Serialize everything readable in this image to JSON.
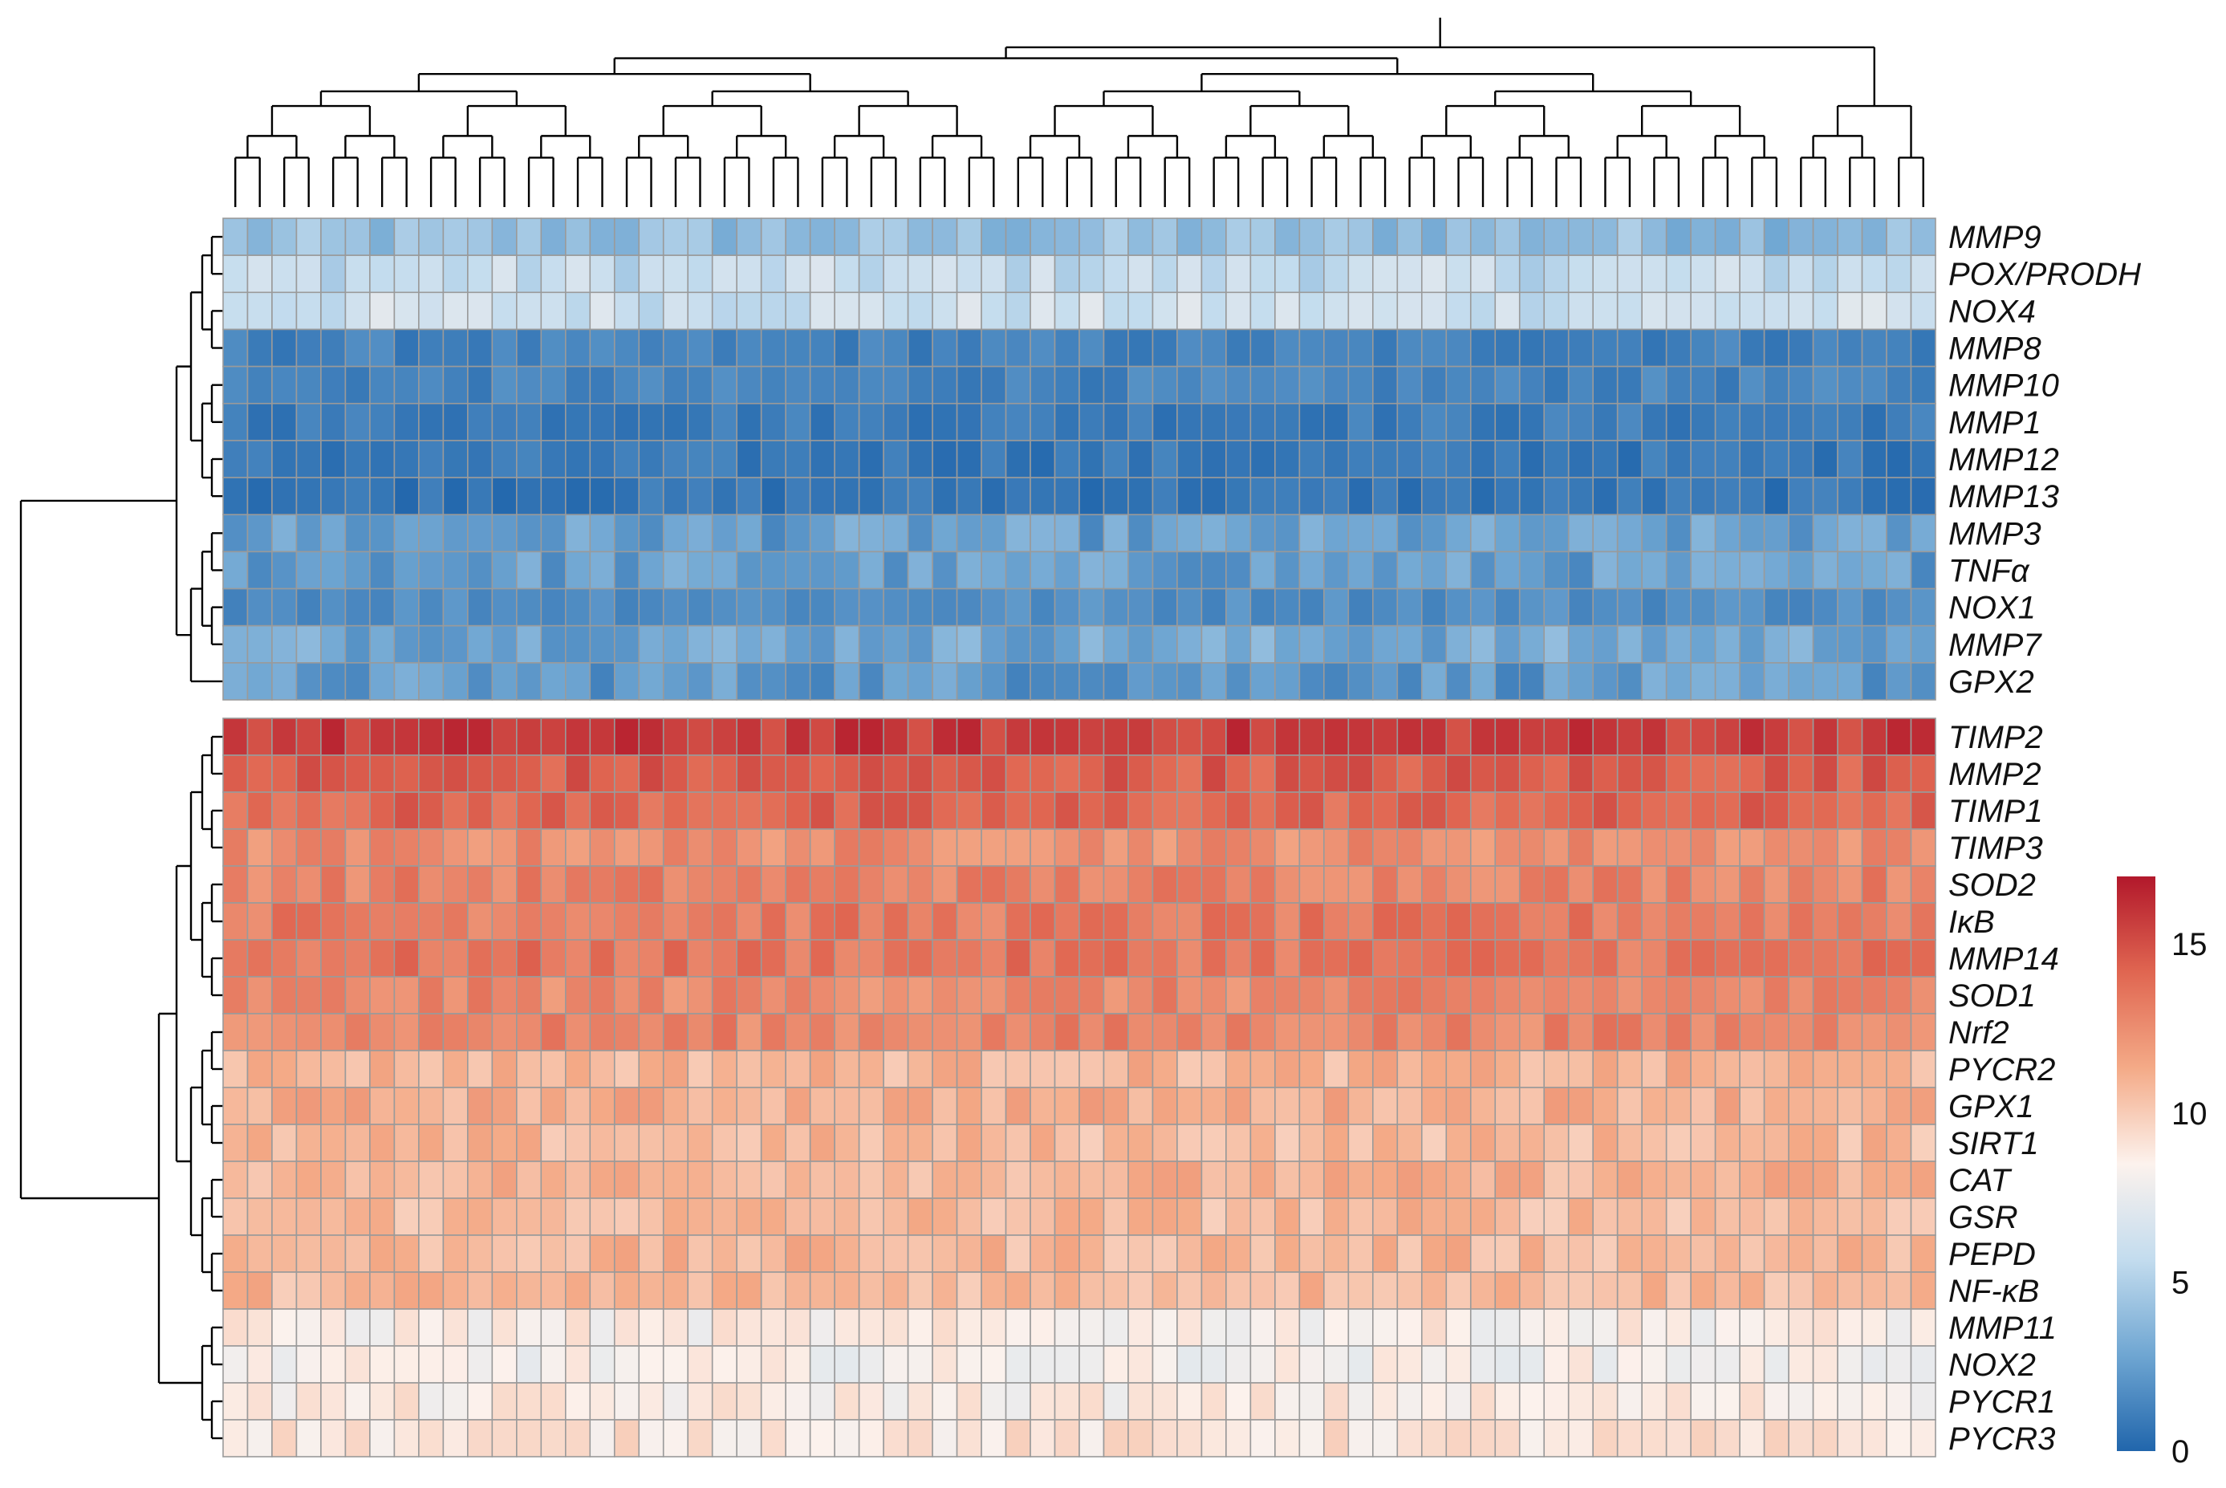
{
  "chart_data": {
    "type": "heatmap",
    "title": "",
    "xlabel": "",
    "ylabel": "",
    "n_columns": 70,
    "column_labels_shown": false,
    "clusters": [
      {
        "name": "upper cluster",
        "rows": [
          "MMP9",
          "POX/PRODH",
          "NOX4",
          "MMP8",
          "MMP10",
          "MMP1",
          "MMP12",
          "MMP13",
          "MMP3",
          "TNFα",
          "NOX1",
          "MMP7",
          "GPX2"
        ],
        "approx_mean_values": [
          4.0,
          5.8,
          6.2,
          1.2,
          1.3,
          1.0,
          0.8,
          0.7,
          2.5,
          2.5,
          1.8,
          3.0,
          2.3
        ]
      },
      {
        "name": "lower cluster",
        "rows": [
          "TIMP2",
          "MMP2",
          "TIMP1",
          "TIMP3",
          "SOD2",
          "IκB",
          "MMP14",
          "SOD1",
          "Nrf2",
          "PYCR2",
          "GPX1",
          "SIRT1",
          "CAT",
          "GSR",
          "PEPD",
          "NF-κB",
          "MMP11",
          "NOX2",
          "PYCR1",
          "PYCR3"
        ],
        "approx_mean_values": [
          15.7,
          14.5,
          14.1,
          12.5,
          13.0,
          13.3,
          13.5,
          12.7,
          12.9,
          10.9,
          11.2,
          10.7,
          11.0,
          10.7,
          10.8,
          10.8,
          8.5,
          8.2,
          8.6,
          9.0
        ]
      }
    ],
    "colorbar": {
      "range": [
        0,
        17
      ],
      "ticks": [
        0,
        5,
        10,
        15
      ],
      "colors": [
        "#2166ac",
        "#6fa6d2",
        "#c3dcee",
        "#fcf2ed",
        "#f4aa87",
        "#e06651",
        "#b2182b"
      ]
    }
  }
}
